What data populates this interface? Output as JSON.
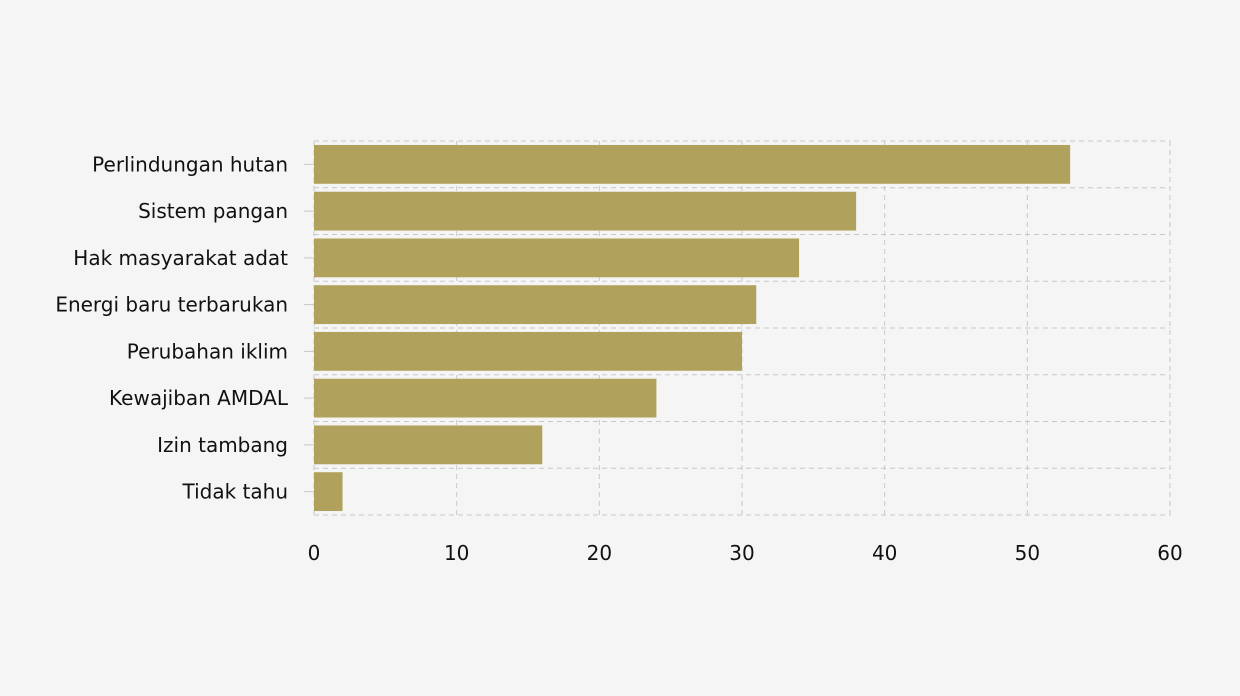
{
  "chart_data": {
    "type": "bar",
    "orientation": "horizontal",
    "categories": [
      "Perlindungan hutan",
      "Sistem pangan",
      "Hak masyarakat adat",
      "Energi baru terbarukan",
      "Perubahan iklim",
      "Kewajiban AMDAL",
      "Izin tambang",
      "Tidak tahu"
    ],
    "values": [
      53,
      38,
      34,
      31,
      30,
      24,
      16,
      2
    ],
    "xlim": [
      0,
      60
    ],
    "x_ticks": [
      0,
      10,
      20,
      30,
      40,
      50,
      60
    ],
    "grid": true,
    "bar_color": "#b0a25c",
    "title": "",
    "xlabel": "",
    "ylabel": ""
  }
}
